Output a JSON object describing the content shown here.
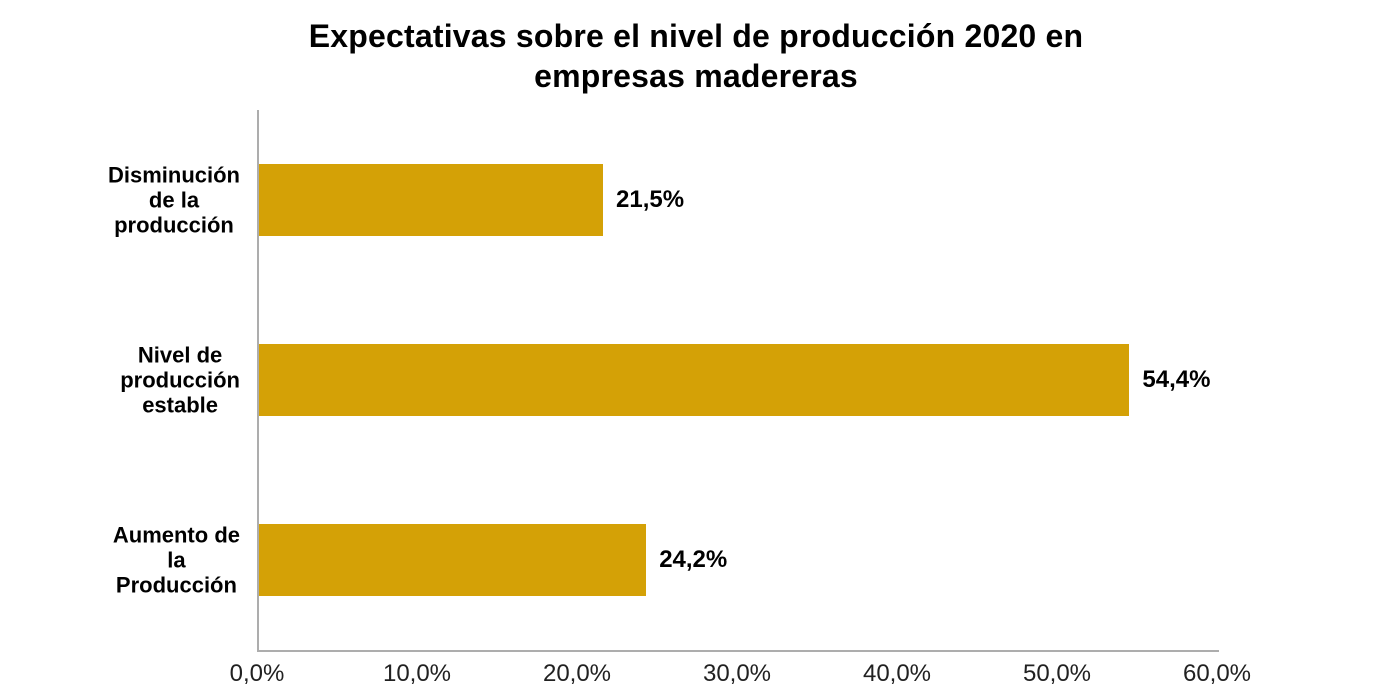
{
  "title": "Expectativas sobre el nivel de producción 2020 en\nempresas madereras",
  "chart_data": {
    "type": "bar",
    "orientation": "horizontal",
    "title": "Expectativas sobre el nivel de producción 2020 en empresas madereras",
    "categories": [
      "Disminución\nde la\nproducción",
      "Nivel de\nproducción\nestable",
      "Aumento de\nla\nProducción"
    ],
    "values": [
      21.5,
      54.4,
      24.2
    ],
    "value_labels": [
      "21,5%",
      "54,4%",
      "24,2%"
    ],
    "xlabel": "",
    "ylabel": "",
    "xlim": [
      0,
      60
    ],
    "x_ticks": [
      0,
      10,
      20,
      30,
      40,
      50,
      60
    ],
    "x_tick_labels": [
      "0,0%",
      "10,0%",
      "20,0%",
      "30,0%",
      "40,0%",
      "50,0%",
      "60,0%"
    ],
    "grid": false,
    "legend": false,
    "colors": {
      "bar": "#D4A106",
      "axis": "#ADADAD",
      "title_text": "#000000",
      "category_text": "#000000",
      "value_text": "#000000",
      "tick_text": "#212121",
      "background": "#FFFFFF"
    }
  }
}
